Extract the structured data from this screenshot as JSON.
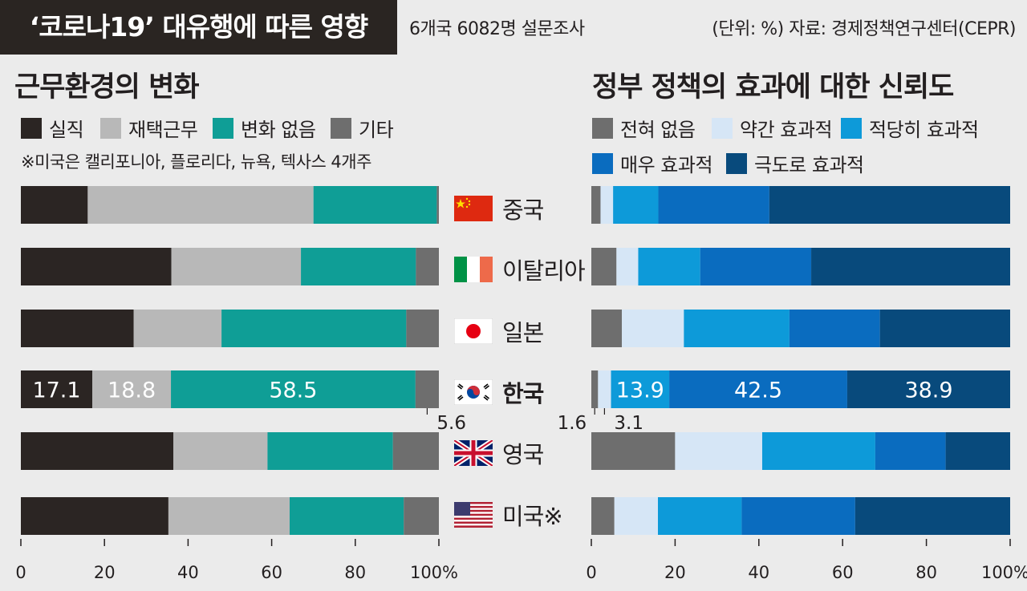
{
  "header": {
    "title": "‘코로나19’ 대유행에 따른 영향",
    "subtitle": "6개국 6082명 설문조사",
    "source": "(단위: %)  자료: 경제정책연구센터(CEPR)"
  },
  "left_panel": {
    "title": "근무환경의 변화",
    "legend": [
      {
        "label": "실직",
        "color": "#2b2523"
      },
      {
        "label": "재택근무",
        "color": "#b8b8b8"
      },
      {
        "label": "변화 없음",
        "color": "#0f9e96"
      },
      {
        "label": "기타",
        "color": "#6e6e6e"
      }
    ],
    "note": "※미국은 캘리포니아, 플로리다, 뉴욕, 텍사스 4개주"
  },
  "right_panel": {
    "title": "정부 정책의 효과에 대한 신뢰도",
    "legend": [
      {
        "label": "전혀 없음",
        "color": "#6e6e6e"
      },
      {
        "label": "약간 효과적",
        "color": "#d6e6f6"
      },
      {
        "label": "적당히 효과적",
        "color": "#0d9ad9"
      },
      {
        "label": "매우 효과적",
        "color": "#0a6cbf"
      },
      {
        "label": "극도로 효과적",
        "color": "#084a7c"
      }
    ]
  },
  "countries": [
    {
      "name": "중국",
      "flag": "china-flag-icon",
      "bold": false
    },
    {
      "name": "이탈리아",
      "flag": "italy-flag-icon",
      "bold": false
    },
    {
      "name": "일본",
      "flag": "japan-flag-icon",
      "bold": false
    },
    {
      "name": "한국",
      "flag": "korea-flag-icon",
      "bold": true
    },
    {
      "name": "영국",
      "flag": "uk-flag-icon",
      "bold": false
    },
    {
      "name": "미국※",
      "flag": "usa-flag-icon",
      "bold": false
    }
  ],
  "chart_data": [
    {
      "type": "bar",
      "orientation": "horizontal",
      "stacked": true,
      "title": "근무환경의 변화",
      "categories": [
        "중국",
        "이탈리아",
        "일본",
        "한국",
        "영국",
        "미국※"
      ],
      "series": [
        {
          "name": "실직",
          "values": [
            16.0,
            36.0,
            27.0,
            17.1,
            36.5,
            35.3
          ]
        },
        {
          "name": "재택근무",
          "values": [
            54.0,
            31.0,
            21.0,
            18.8,
            22.5,
            29.0
          ]
        },
        {
          "name": "변화 없음",
          "values": [
            29.5,
            27.5,
            44.2,
            58.5,
            30.0,
            27.3
          ]
        },
        {
          "name": "기타",
          "values": [
            0.5,
            5.5,
            7.8,
            5.6,
            11.0,
            8.4
          ]
        }
      ],
      "data_labels": {
        "한국": [
          "17.1",
          "18.8",
          "58.5",
          "5.6"
        ]
      },
      "xlim": [
        0,
        100
      ],
      "xticks": [
        "0",
        "20",
        "40",
        "60",
        "80",
        "100%"
      ]
    },
    {
      "type": "bar",
      "orientation": "horizontal",
      "stacked": true,
      "title": "정부 정책의 효과에 대한 신뢰도",
      "categories": [
        "중국",
        "이탈리아",
        "일본",
        "한국",
        "영국",
        "미국※"
      ],
      "series": [
        {
          "name": "전혀 없음",
          "values": [
            2.2,
            6.0,
            7.3,
            1.6,
            20.0,
            5.5
          ]
        },
        {
          "name": "약간 효과적",
          "values": [
            3.0,
            5.2,
            14.8,
            3.1,
            20.8,
            10.4
          ]
        },
        {
          "name": "적당히 효과적",
          "values": [
            10.8,
            14.8,
            25.2,
            13.9,
            27.0,
            20.0
          ]
        },
        {
          "name": "매우 효과적",
          "values": [
            26.5,
            26.5,
            21.6,
            42.5,
            16.8,
            27.1
          ]
        },
        {
          "name": "극도로 효과적",
          "values": [
            57.5,
            47.5,
            31.1,
            38.9,
            15.4,
            37.0
          ]
        }
      ],
      "data_labels": {
        "한국": [
          "1.6",
          "3.1",
          "13.9",
          "42.5",
          "38.9"
        ]
      },
      "xlim": [
        0,
        100
      ],
      "xticks": [
        "0",
        "20",
        "40",
        "60",
        "80",
        "100%"
      ]
    }
  ]
}
